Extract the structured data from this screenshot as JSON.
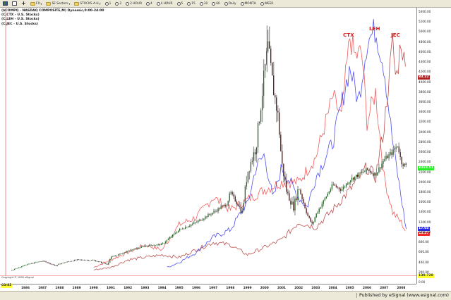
{
  "toolbar": {
    "items": [
      {
        "label": "",
        "icon": "layout-grid-icon"
      },
      {
        "label": "",
        "icon": "new-window-icon"
      },
      {
        "label": "",
        "icon": "plus-icon"
      },
      {
        "label": "FX",
        "icon": "folder-icon",
        "dropdown": true
      },
      {
        "label": "SE Sectors",
        "icon": "folder-icon",
        "dropdown": true
      },
      {
        "label": "STOCKS A-H",
        "icon": "folder-icon",
        "dropdown": true
      },
      {
        "label": "1",
        "icon": "clock-icon"
      },
      {
        "label": "2",
        "icon": "clock-icon"
      },
      {
        "label": "2 HOUR",
        "icon": "clock-icon"
      },
      {
        "label": "4",
        "icon": "clock-icon"
      },
      {
        "label": "4 HOUR",
        "icon": "clock-icon"
      },
      {
        "label": "5",
        "icon": "clock-icon"
      },
      {
        "label": "15",
        "icon": "clock-icon"
      },
      {
        "label": "30",
        "icon": "clock-icon"
      },
      {
        "label": "60",
        "icon": "clock-icon"
      },
      {
        "label": "Daily",
        "icon": "clock-icon"
      },
      {
        "label": "MONTH",
        "icon": "clock-icon"
      },
      {
        "label": "WEEK",
        "icon": "clock-icon"
      }
    ]
  },
  "legend": [
    "($COMPQ - NASDAQ COMPOSITE,M) Dynamic,0:00-24:00",
    "(C,CTX - U.S. Stocks)",
    "(C,LEH - U.S. Stocks)",
    "(C,JEC - U.S. Stocks)"
  ],
  "annotations": [
    {
      "label": "CTX",
      "color": "#e02020"
    },
    {
      "label": "LEH",
      "color": "#e02020"
    },
    {
      "label": "JEC",
      "color": "#e02020"
    }
  ],
  "price_tags": [
    {
      "value": "83.22",
      "bg": "#b02020",
      "fg": "#ffffff",
      "series": "JEC"
    },
    {
      "value": "2318.51",
      "bg": "#22ee22",
      "fg": "#ffffff",
      "series": "$COMPQ"
    },
    {
      "value": "17.05",
      "bg": "#2a2aee",
      "fg": "#ffffff",
      "series": "LEH"
    },
    {
      "value": "13.57",
      "bg": "#ee2a2a",
      "fg": "#ffffff",
      "series": "CTX"
    },
    {
      "value": "130.728",
      "bg": "#ffff33",
      "fg": "#333333",
      "series": "cursor"
    }
  ],
  "cursor_time": "03/85",
  "copyright": "Copyright © 2008 eSignal",
  "status_bar": {
    "publisher": "Published by eSignal (www.esignal.com)"
  },
  "colors": {
    "nasdaq_up": "#1e6b1e",
    "nasdaq_down": "#5a1010",
    "nasdaq_wick": "#9a9a9a",
    "ctx": "#f04040",
    "leh": "#3030f0",
    "jec": "#b03030",
    "cursor_line": "#f5a0a0"
  },
  "chart_data": {
    "type": "line",
    "title": "($COMPQ - NASDAQ COMPOSITE,M) Dynamic,0:00-24:00",
    "xlabel": "",
    "ylabel": "",
    "x_tick_labels": [
      "1986",
      "1987",
      "1988",
      "1989",
      "1990",
      "1991",
      "1992",
      "1993",
      "1994",
      "1995",
      "1996",
      "1997",
      "1998",
      "1999",
      "2000",
      "2001",
      "2002",
      "2003",
      "2004",
      "2005",
      "2006",
      "2007",
      "2008"
    ],
    "y_tick_labels": [
      "0.00",
      "200.00",
      "400.00",
      "600.00",
      "800.00",
      "1000.00",
      "1200.00",
      "1400.00",
      "1600.00",
      "1800.00",
      "2000.00",
      "2200.00",
      "2400.00",
      "2600.00",
      "2800.00",
      "3000.00",
      "3200.00",
      "3400.00",
      "3600.00",
      "3800.00",
      "4000.00",
      "4200.00",
      "4400.00",
      "4600.00",
      "4800.00",
      "5000.00",
      "5200.00",
      "5400.00"
    ],
    "ylim": [
      0,
      5400
    ],
    "grid": false,
    "legend_position": "top-left",
    "series": [
      {
        "name": "$COMPQ - NASDAQ COMPOSITE (monthly candles)",
        "style": "candlestick",
        "x": [
          1985.2,
          1986,
          1987,
          1987.8,
          1988,
          1989,
          1990,
          1990.8,
          1991,
          1992,
          1993,
          1994,
          1995,
          1996,
          1997,
          1997.8,
          1998,
          1998.7,
          1999,
          1999.5,
          2000.0,
          2000.2,
          2000.5,
          2000.8,
          2001,
          2001.3,
          2001.7,
          2002,
          2002.5,
          2002.8,
          2003,
          2003.5,
          2004,
          2004.5,
          2005,
          2005.5,
          2006,
          2006.5,
          2007,
          2007.5,
          2007.8,
          2008,
          2008.3
        ],
        "values": [
          245,
          350,
          430,
          330,
          375,
          450,
          440,
          360,
          500,
          620,
          730,
          760,
          1050,
          1200,
          1400,
          1570,
          1800,
          1400,
          2200,
          2700,
          4200,
          4700,
          3900,
          3300,
          2400,
          1800,
          1500,
          1900,
          1350,
          1150,
          1350,
          1650,
          1950,
          1850,
          2050,
          2150,
          2250,
          2150,
          2450,
          2600,
          2750,
          2400,
          2320
        ]
      },
      {
        "name": "CTX",
        "style": "line",
        "x": [
          1990,
          1991,
          1992,
          1993,
          1994,
          1995,
          1996,
          1997,
          1998,
          1999,
          2000,
          2001,
          2002,
          2003,
          2004,
          2004.5,
          2005,
          2005.3,
          2005.7,
          2006,
          2006.5,
          2007,
          2007.5,
          2008,
          2008.3
        ],
        "values": [
          300,
          450,
          600,
          750,
          650,
          1150,
          1300,
          1700,
          1450,
          1650,
          1850,
          2000,
          2000,
          2500,
          3700,
          3300,
          4900,
          4500,
          4600,
          3200,
          3800,
          2100,
          1400,
          1200,
          1000
        ]
      },
      {
        "name": "LEH",
        "style": "line",
        "x": [
          1994.3,
          1995,
          1996,
          1997,
          1998,
          1998.8,
          1999,
          1999.5,
          2000,
          2000.5,
          2001,
          2002,
          2002.5,
          2003,
          2004,
          2005,
          2005.5,
          2006,
          2006.5,
          2007,
          2007.5,
          2008,
          2008.3
        ],
        "values": [
          300,
          400,
          600,
          900,
          1050,
          1500,
          1550,
          2300,
          2550,
          1650,
          2300,
          1700,
          1500,
          2100,
          2800,
          4300,
          3600,
          4800,
          5050,
          4300,
          2800,
          1700,
          1050
        ]
      },
      {
        "name": "JEC",
        "style": "line",
        "x": [
          1990,
          1991,
          1992,
          1993,
          1994,
          1995,
          1996,
          1997,
          1998,
          1999,
          2000,
          2001,
          2002,
          2003,
          2004,
          2005,
          2006,
          2006.5,
          2007,
          2007.5,
          2007.7,
          2008,
          2008.3
        ],
        "values": [
          250,
          300,
          450,
          500,
          550,
          500,
          650,
          800,
          750,
          550,
          700,
          850,
          1200,
          1100,
          1450,
          1850,
          2300,
          2100,
          3100,
          4800,
          4000,
          4850,
          4100
        ]
      }
    ],
    "annotations_text": [
      "CTX",
      "LEH",
      "JEC"
    ]
  }
}
